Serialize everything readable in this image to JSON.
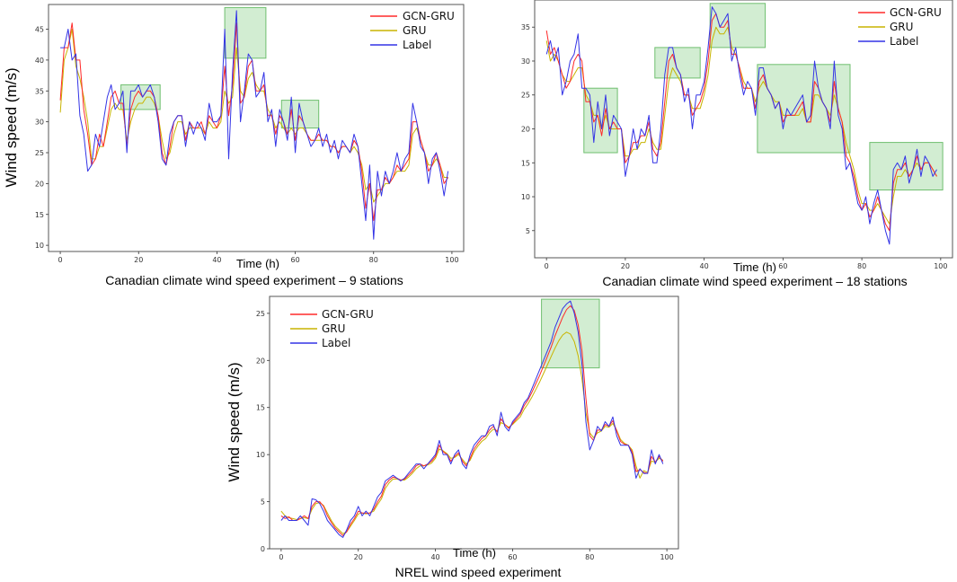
{
  "colors": {
    "gcn_gru": "#ff2a2a",
    "gru": "#c8b400",
    "label": "#3434e6",
    "highlight_fill": "#bfe6bf",
    "highlight_stroke": "#6fbf6f",
    "frame": "#555555"
  },
  "chart_data": [
    {
      "type": "line",
      "caption": "Canadian climate wind speed experiment – 9 stations",
      "xlabel": "Time (h)",
      "ylabel": "Wind speed (m/s)",
      "xlim": [
        -3,
        103
      ],
      "ylim": [
        9,
        49
      ],
      "xticks": [
        0,
        20,
        40,
        60,
        80,
        100
      ],
      "yticks": [
        10,
        15,
        20,
        25,
        30,
        35,
        40,
        45
      ],
      "legend": [
        "GCN-GRU",
        "GRU",
        "Label"
      ],
      "legend_position": "top-right",
      "highlights": [
        {
          "x0": 15.5,
          "x1": 25.5,
          "y0": 32,
          "y1": 36
        },
        {
          "x0": 42,
          "x1": 52.5,
          "y0": 40.3,
          "y1": 48.5
        },
        {
          "x0": 56.5,
          "x1": 66,
          "y0": 29,
          "y1": 33.5
        }
      ],
      "series": [
        {
          "name": "Label",
          "values": [
            42,
            42,
            45,
            40,
            41,
            31,
            28,
            22,
            23,
            28,
            26,
            30,
            34,
            36,
            32,
            33,
            35,
            25,
            35,
            35,
            36,
            34,
            35,
            36,
            34,
            30,
            24,
            23,
            28,
            30,
            31,
            31,
            26,
            30,
            28,
            30,
            29,
            27,
            33,
            30,
            30,
            31,
            45,
            24,
            38,
            48,
            30,
            35,
            41,
            40,
            34,
            35,
            38,
            30,
            32,
            26,
            32,
            30,
            27,
            34,
            25,
            33,
            30,
            28,
            26,
            27,
            29,
            26,
            28,
            25,
            27,
            24,
            27,
            26,
            25,
            28,
            26,
            20,
            14,
            23,
            11,
            22,
            18,
            22,
            20,
            22,
            25,
            22,
            24,
            25,
            33,
            30,
            26,
            25,
            20,
            24,
            25,
            22,
            18,
            22
          ]
        },
        {
          "name": "GCN-GRU",
          "values": [
            33.5,
            42,
            42,
            46,
            40,
            40,
            32,
            28,
            23,
            24,
            28,
            26,
            30,
            34,
            35,
            33,
            33,
            26,
            32,
            34,
            35,
            34,
            35,
            35,
            34,
            31,
            25,
            23,
            26,
            30,
            31,
            31,
            27,
            30,
            29,
            29,
            30,
            28,
            31,
            30,
            29,
            31,
            39,
            31,
            36,
            46,
            33,
            34,
            39,
            40,
            35,
            35,
            36,
            31,
            31,
            28,
            31,
            30,
            28,
            32,
            27,
            31,
            30,
            28,
            27,
            27,
            28,
            27,
            27,
            26,
            26,
            25,
            26,
            26,
            25,
            27,
            26,
            22,
            16,
            20,
            14,
            19,
            19,
            21,
            20,
            21,
            23,
            22,
            23,
            24,
            30,
            30,
            27,
            25,
            22,
            23,
            25,
            23,
            20,
            21
          ]
        },
        {
          "name": "GRU",
          "values": [
            31.5,
            40,
            42,
            45,
            39,
            37,
            34,
            30,
            24,
            24,
            26,
            26,
            29,
            32,
            33,
            32,
            32,
            27,
            30,
            32,
            33,
            33,
            34,
            34,
            33,
            31,
            27,
            24,
            25,
            28,
            30,
            30,
            28,
            29,
            29,
            29,
            29,
            28,
            30,
            29,
            29,
            30,
            35,
            33,
            34,
            42,
            35,
            34,
            37,
            38,
            36,
            35,
            35,
            32,
            31,
            29,
            30,
            29,
            28,
            29,
            28,
            29,
            29,
            28,
            27,
            27,
            27,
            27,
            27,
            26,
            26,
            25,
            26,
            26,
            25,
            26,
            25,
            23,
            19,
            20,
            17,
            18,
            19,
            20,
            20,
            21,
            22,
            22,
            22,
            23,
            28,
            29,
            27,
            25,
            23,
            23,
            24,
            23,
            21,
            21
          ]
        }
      ]
    },
    {
      "type": "line",
      "caption": "Canadian climate wind speed experiment – 18 stations",
      "xlabel": "Time (h)",
      "ylabel": "",
      "xlim": [
        -3,
        103
      ],
      "ylim": [
        1,
        39
      ],
      "xticks": [
        0,
        20,
        40,
        60,
        80,
        100
      ],
      "yticks": [
        5,
        10,
        15,
        20,
        25,
        30,
        35
      ],
      "legend": [
        "GCN-GRU",
        "GRU",
        "Label"
      ],
      "legend_position": "top-right",
      "highlights": [
        {
          "x0": 9.5,
          "x1": 18,
          "y0": 16.5,
          "y1": 26
        },
        {
          "x0": 27.5,
          "x1": 39,
          "y0": 27.5,
          "y1": 32
        },
        {
          "x0": 41.5,
          "x1": 55.5,
          "y0": 32,
          "y1": 38.5
        },
        {
          "x0": 53.5,
          "x1": 77,
          "y0": 16.5,
          "y1": 29.5
        },
        {
          "x0": 82,
          "x1": 100.5,
          "y0": 11,
          "y1": 18
        }
      ],
      "series": [
        {
          "name": "Label",
          "values": [
            31,
            33,
            30,
            32,
            25,
            27,
            30,
            31,
            34,
            26,
            26,
            25,
            18,
            24,
            20,
            25,
            19,
            22,
            21,
            20,
            13,
            16,
            20,
            17,
            20,
            19,
            22,
            15,
            15,
            20,
            28,
            32,
            32,
            29,
            28,
            24,
            26,
            20,
            25,
            25,
            27,
            32,
            38,
            37,
            35,
            36,
            37,
            30,
            32,
            28,
            25,
            27,
            26,
            22,
            29,
            29,
            26,
            25,
            23,
            24,
            20,
            23,
            22,
            23,
            24,
            25,
            21,
            22,
            30,
            26,
            24,
            23,
            20,
            30,
            22,
            20,
            14,
            15,
            12,
            9,
            8,
            10,
            6,
            9,
            11,
            8,
            5,
            3,
            14,
            15,
            14,
            16,
            12,
            14,
            17,
            13,
            16,
            15,
            13,
            14
          ]
        },
        {
          "name": "GCN-GRU",
          "values": [
            34.5,
            31,
            32,
            30,
            28,
            26,
            27,
            30,
            31,
            30,
            24,
            24,
            21,
            22,
            19,
            23,
            20,
            21,
            20,
            20,
            15,
            16,
            18,
            18,
            19,
            19,
            21,
            17,
            16,
            18,
            24,
            30,
            31,
            29,
            28,
            25,
            25,
            22,
            23,
            24,
            26,
            30,
            36,
            37,
            35,
            35,
            36,
            31,
            31,
            29,
            26,
            26,
            26,
            23,
            27,
            28,
            26,
            25,
            23,
            24,
            21,
            22,
            22,
            22,
            23,
            24,
            21,
            21,
            27,
            26,
            24,
            23,
            21,
            27,
            23,
            21,
            16,
            15,
            13,
            10,
            8,
            9,
            7,
            8,
            10,
            8,
            6,
            5,
            12,
            14,
            14,
            15,
            13,
            14,
            16,
            14,
            15,
            15,
            14,
            13
          ]
        },
        {
          "name": "GRU",
          "values": [
            33,
            30,
            31,
            30,
            28,
            27,
            27,
            28,
            29,
            29,
            25,
            24,
            22,
            22,
            20,
            22,
            20,
            20,
            20,
            20,
            16,
            16,
            17,
            17,
            18,
            18,
            20,
            18,
            17,
            17,
            22,
            27,
            29,
            28,
            27,
            25,
            25,
            23,
            23,
            23,
            25,
            28,
            33,
            35,
            34,
            34,
            35,
            32,
            31,
            29,
            27,
            26,
            26,
            24,
            26,
            27,
            26,
            25,
            24,
            24,
            22,
            22,
            22,
            22,
            22,
            23,
            21,
            21,
            25,
            25,
            24,
            23,
            22,
            25,
            23,
            21,
            18,
            16,
            14,
            11,
            9,
            9,
            8,
            8,
            9,
            8,
            7,
            6,
            10,
            13,
            13,
            14,
            13,
            14,
            15,
            14,
            15,
            15,
            14,
            13
          ]
        }
      ]
    },
    {
      "type": "line",
      "caption": "NREL wind speed experiment",
      "xlabel": "Time (h)",
      "ylabel": "Wind speed (m/s)",
      "xlim": [
        -3,
        103
      ],
      "ylim": [
        0,
        26.8
      ],
      "xticks": [
        0,
        20,
        40,
        60,
        80,
        100
      ],
      "yticks": [
        0,
        5,
        10,
        15,
        20,
        25
      ],
      "legend": [
        "GCN-GRU",
        "GRU",
        "Label"
      ],
      "legend_position": "top-left",
      "highlights": [
        {
          "x0": 67.5,
          "x1": 82.5,
          "y0": 19.2,
          "y1": 26.5
        }
      ],
      "series": [
        {
          "name": "Label",
          "values": [
            3,
            3.5,
            3,
            3,
            3,
            3.5,
            3,
            2.5,
            5.3,
            5.2,
            4.8,
            4,
            3,
            2.5,
            2,
            1.5,
            1.2,
            2,
            3,
            3.5,
            4.5,
            3.5,
            4,
            3.5,
            4.5,
            5.5,
            6,
            7.2,
            7.5,
            7.8,
            7.5,
            7.2,
            7.5,
            8,
            8.5,
            9,
            9,
            8.5,
            9,
            9.5,
            10,
            11.5,
            10,
            10,
            9,
            10,
            10.5,
            9,
            8.5,
            10,
            11,
            11.5,
            12,
            12,
            13,
            13.2,
            12,
            14.5,
            13,
            12.5,
            13.5,
            14,
            14.5,
            15.5,
            16,
            17,
            18,
            19,
            20,
            21,
            22,
            23.5,
            24.5,
            25.5,
            26,
            26.3,
            25,
            23,
            19.5,
            13.5,
            10.5,
            11.5,
            13,
            12.5,
            13.5,
            13,
            14,
            12,
            11,
            11,
            11,
            10,
            7.5,
            8.5,
            8,
            8,
            10.5,
            9,
            10,
            9
          ]
        },
        {
          "name": "GCN-GRU",
          "values": [
            3.5,
            3.2,
            3.4,
            3,
            3,
            3.2,
            3.5,
            3.2,
            4.5,
            5,
            5,
            4.5,
            3.5,
            2.8,
            2.2,
            1.8,
            1.4,
            1.8,
            2.6,
            3.2,
            4,
            3.8,
            3.8,
            3.8,
            4.2,
            5,
            5.6,
            6.8,
            7.3,
            7.6,
            7.5,
            7.3,
            7.4,
            7.8,
            8.2,
            8.8,
            9,
            8.8,
            9,
            9.3,
            9.8,
            11,
            10.3,
            10,
            9.3,
            9.8,
            10.2,
            9.3,
            8.8,
            9.6,
            10.6,
            11.2,
            11.7,
            12,
            12.6,
            13,
            12.4,
            13.8,
            13.2,
            12.8,
            13.3,
            13.8,
            14.3,
            15.2,
            15.8,
            16.6,
            17.5,
            18.4,
            19.4,
            20.4,
            21.4,
            22.6,
            23.6,
            24.6,
            25.4,
            25.8,
            25.3,
            23.8,
            21,
            16,
            12,
            11.5,
            12.6,
            12.6,
            13.2,
            13,
            13.6,
            12.5,
            11.4,
            11.1,
            11,
            10.3,
            8.2,
            8.4,
            8.1,
            8,
            9.8,
            9.2,
            9.8,
            9.3
          ]
        },
        {
          "name": "GRU",
          "values": [
            4,
            3.5,
            3.3,
            3.2,
            3.1,
            3.2,
            3.3,
            3.2,
            4.2,
            4.8,
            4.9,
            4.6,
            3.8,
            3,
            2.4,
            2,
            1.6,
            1.8,
            2.4,
            3,
            3.7,
            3.8,
            3.7,
            3.8,
            4,
            4.7,
            5.3,
            6.4,
            7,
            7.4,
            7.4,
            7.3,
            7.3,
            7.6,
            8,
            8.5,
            8.8,
            8.8,
            8.9,
            9.1,
            9.6,
            10.6,
            10.4,
            10.1,
            9.6,
            9.7,
            10,
            9.5,
            9,
            9.4,
            10.3,
            10.9,
            11.4,
            11.7,
            12.3,
            12.7,
            12.5,
            13.4,
            13.2,
            12.9,
            13.2,
            13.6,
            14,
            14.8,
            15.4,
            16.1,
            16.9,
            17.7,
            18.6,
            19.5,
            20.4,
            21.3,
            22.1,
            22.7,
            23,
            22.8,
            22,
            20.5,
            18,
            14.5,
            12.3,
            11.8,
            12.3,
            12.5,
            13,
            12.9,
            13.3,
            12.6,
            11.6,
            11.2,
            11,
            10.5,
            8.8,
            7.5,
            8.3,
            8.1,
            9.3,
            9.2,
            9.6,
            9.4
          ]
        }
      ]
    }
  ]
}
